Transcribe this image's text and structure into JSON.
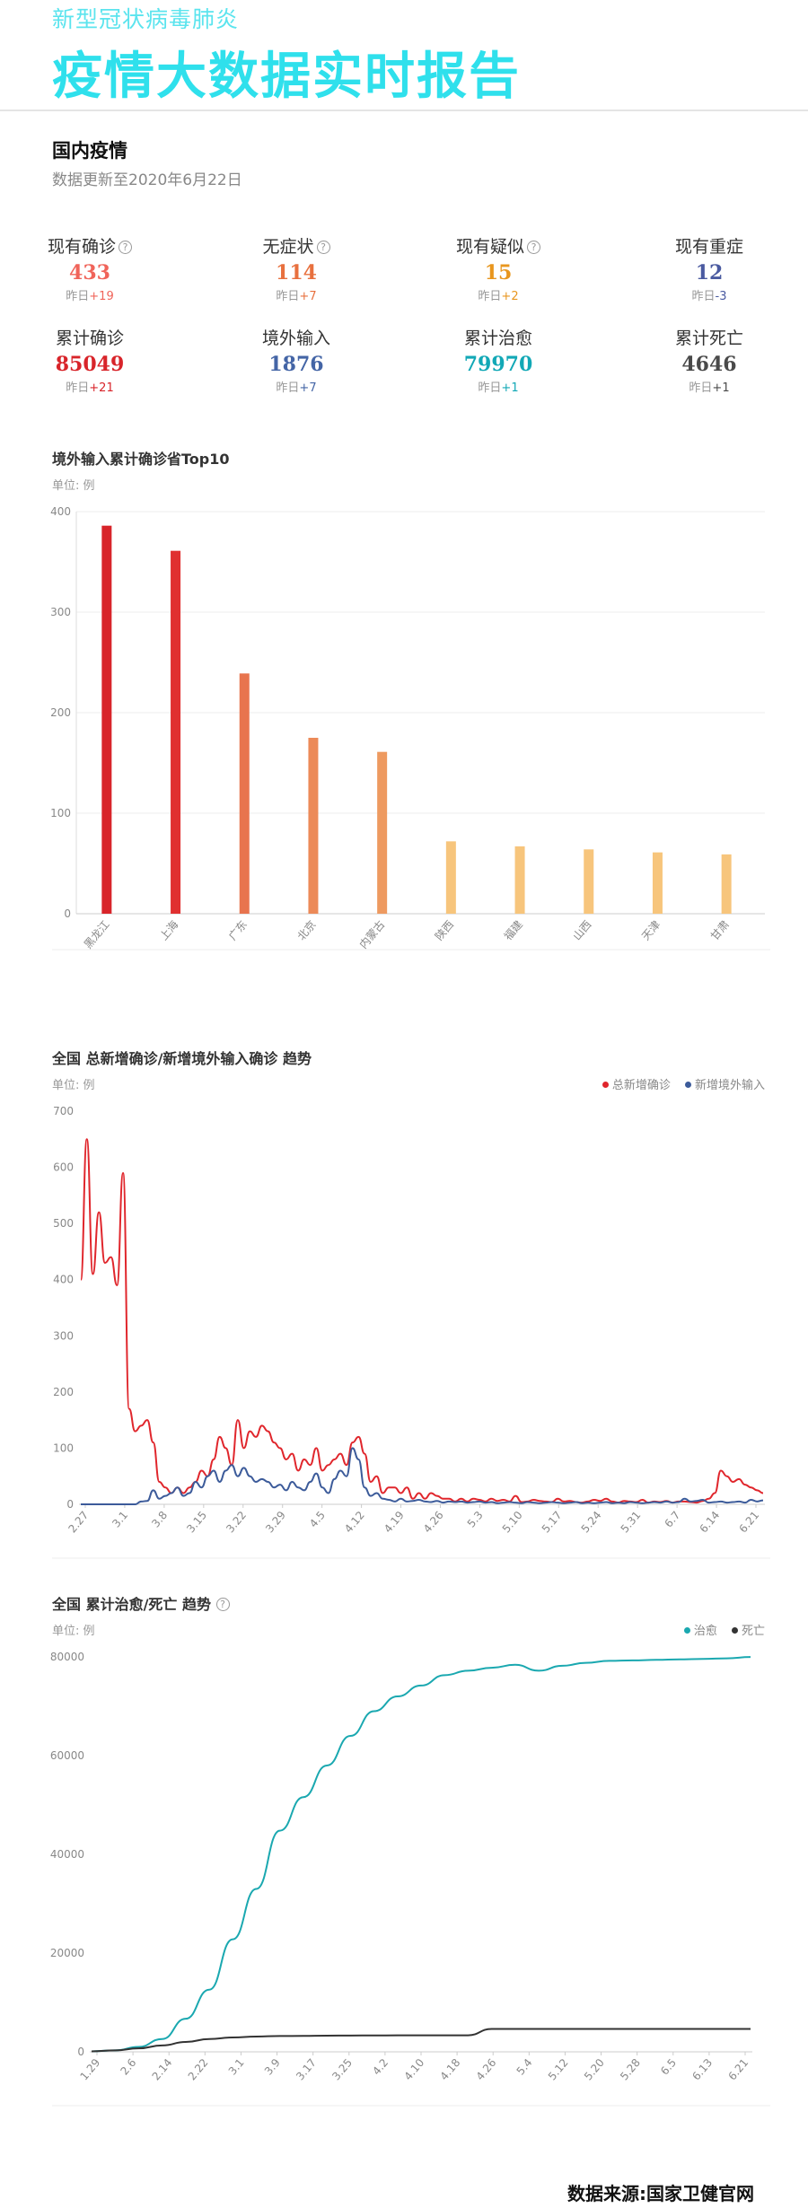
{
  "header": {
    "subtitle": "新型冠状病毒肺炎",
    "title": "疫情大数据实时报告"
  },
  "domestic": {
    "title": "国内疫情",
    "update": "数据更新至2020年6月22日",
    "yesterday_label": "昨日"
  },
  "stats": [
    {
      "label": "现有确诊",
      "help": true,
      "value": "433",
      "delta": "+19",
      "color": "#f0645a"
    },
    {
      "label": "无症状",
      "help": true,
      "value": "114",
      "delta": "+7",
      "color": "#e8703e"
    },
    {
      "label": "现有疑似",
      "help": true,
      "value": "15",
      "delta": "+2",
      "color": "#e8961e"
    },
    {
      "label": "现有重症",
      "help": false,
      "value": "12",
      "delta": "-3",
      "color": "#4a5aa0"
    },
    {
      "label": "累计确诊",
      "help": false,
      "value": "85049",
      "delta": "+21",
      "color": "#d8242a"
    },
    {
      "label": "境外输入",
      "help": false,
      "value": "1876",
      "delta": "+7",
      "color": "#4465a6"
    },
    {
      "label": "累计治愈",
      "help": false,
      "value": "79970",
      "delta": "+1",
      "color": "#12a8b6"
    },
    {
      "label": "累计死亡",
      "help": false,
      "value": "4646",
      "delta": "+1",
      "color": "#4a4a4a"
    }
  ],
  "chart_data": [
    {
      "type": "bar",
      "title": "境外输入累计确诊省Top10",
      "unit": "单位: 例",
      "categories": [
        "黑龙江",
        "上海",
        "广东",
        "北京",
        "内蒙古",
        "陕西",
        "福建",
        "山西",
        "天津",
        "甘肃"
      ],
      "values": [
        386,
        361,
        239,
        175,
        161,
        72,
        67,
        64,
        61,
        59
      ],
      "colors": [
        "#d8242a",
        "#e03030",
        "#e8744e",
        "#ec8a58",
        "#ee9a60",
        "#f7c57c",
        "#f7c57c",
        "#f7c57c",
        "#f7c57c",
        "#f7c57c"
      ],
      "ylim": [
        0,
        400
      ],
      "yticks": [
        0,
        100,
        200,
        300,
        400
      ]
    },
    {
      "type": "line",
      "title": "全国 总新增确诊/新增境外输入确诊 趋势",
      "unit": "单位: 例",
      "x_start": "2020-02-25",
      "xticks": [
        "2.27",
        "3.1",
        "3.8",
        "3.15",
        "3.22",
        "3.29",
        "4.5",
        "4.12",
        "4.19",
        "4.26",
        "5.3",
        "5.10",
        "5.17",
        "5.24",
        "5.31",
        "6.7",
        "6.14",
        "6.21"
      ],
      "ylim": [
        0,
        700
      ],
      "yticks": [
        0,
        100,
        200,
        300,
        400,
        500,
        600,
        700
      ],
      "series": [
        {
          "name": "总新增确诊",
          "color": "#e0262c",
          "values": [
            400,
            650,
            410,
            520,
            430,
            440,
            390,
            590,
            170,
            130,
            140,
            150,
            110,
            40,
            30,
            20,
            30,
            20,
            30,
            40,
            60,
            50,
            80,
            120,
            100,
            70,
            150,
            100,
            130,
            120,
            140,
            130,
            110,
            100,
            80,
            90,
            60,
            80,
            70,
            100,
            60,
            70,
            80,
            90,
            70,
            110,
            120,
            90,
            40,
            50,
            20,
            30,
            30,
            20,
            30,
            10,
            20,
            10,
            20,
            15,
            10,
            10,
            5,
            10,
            5,
            10,
            8,
            5,
            10,
            6,
            8,
            5,
            15,
            4,
            5,
            8,
            6,
            5,
            4,
            10,
            5,
            6,
            4,
            3,
            5,
            8,
            6,
            10,
            5,
            3,
            6,
            5,
            4,
            8,
            3,
            5,
            4,
            6,
            3,
            5,
            5,
            4,
            3,
            6,
            10,
            20,
            60,
            50,
            40,
            45,
            35,
            30,
            25,
            20
          ]
        },
        {
          "name": "新增境外输入",
          "color": "#3c5b9a",
          "values": [
            0,
            0,
            0,
            0,
            0,
            0,
            0,
            0,
            0,
            0,
            5,
            6,
            25,
            10,
            15,
            20,
            30,
            15,
            20,
            40,
            30,
            50,
            60,
            40,
            60,
            70,
            50,
            65,
            50,
            40,
            45,
            40,
            30,
            35,
            25,
            40,
            30,
            25,
            40,
            55,
            30,
            20,
            45,
            60,
            50,
            100,
            80,
            30,
            15,
            20,
            10,
            8,
            5,
            10,
            5,
            6,
            8,
            5,
            4,
            6,
            3,
            5,
            4,
            5,
            3,
            4,
            5,
            3,
            4,
            2,
            3,
            4,
            3,
            2,
            4,
            3,
            2,
            3,
            4,
            3,
            2,
            3,
            4,
            2,
            3,
            2,
            3,
            4,
            2,
            3,
            2,
            4,
            3,
            2,
            3,
            4,
            3,
            5,
            3,
            4,
            10,
            5,
            6,
            8,
            3,
            4,
            5,
            3,
            4,
            5,
            3,
            8,
            5,
            7
          ]
        }
      ],
      "legend": "top-right"
    },
    {
      "type": "line",
      "title": "全国 累计治愈/死亡 趋势",
      "unit": "单位: 例",
      "help": true,
      "xticks": [
        "1.29",
        "2.6",
        "2.14",
        "2.22",
        "3.1",
        "3.9",
        "3.17",
        "3.25",
        "4.2",
        "4.10",
        "4.18",
        "4.26",
        "5.4",
        "5.12",
        "5.20",
        "5.28",
        "6.5",
        "6.13",
        "6.21"
      ],
      "ylim": [
        0,
        80000
      ],
      "yticks": [
        0,
        20000,
        40000,
        60000,
        80000
      ],
      "series": [
        {
          "name": "治愈",
          "color": "#1aa8b0",
          "values": [
            100,
            300,
            1000,
            2600,
            6700,
            12600,
            22800,
            33000,
            44800,
            51600,
            58000,
            64000,
            69000,
            72000,
            74200,
            76300,
            77200,
            77800,
            78400,
            77200,
            78200,
            78800,
            79200,
            79300,
            79400,
            79500,
            79600,
            79700,
            79970
          ]
        },
        {
          "name": "死亡",
          "color": "#333333",
          "values": [
            100,
            300,
            700,
            1300,
            2000,
            2600,
            2900,
            3100,
            3200,
            3230,
            3270,
            3300,
            3320,
            3330,
            3340,
            3345,
            3350,
            4640,
            4640,
            4640,
            4640,
            4640,
            4640,
            4640,
            4640,
            4640,
            4641,
            4645,
            4646
          ]
        }
      ],
      "legend": "top-right"
    }
  ],
  "source": "数据来源:国家卫健官网"
}
